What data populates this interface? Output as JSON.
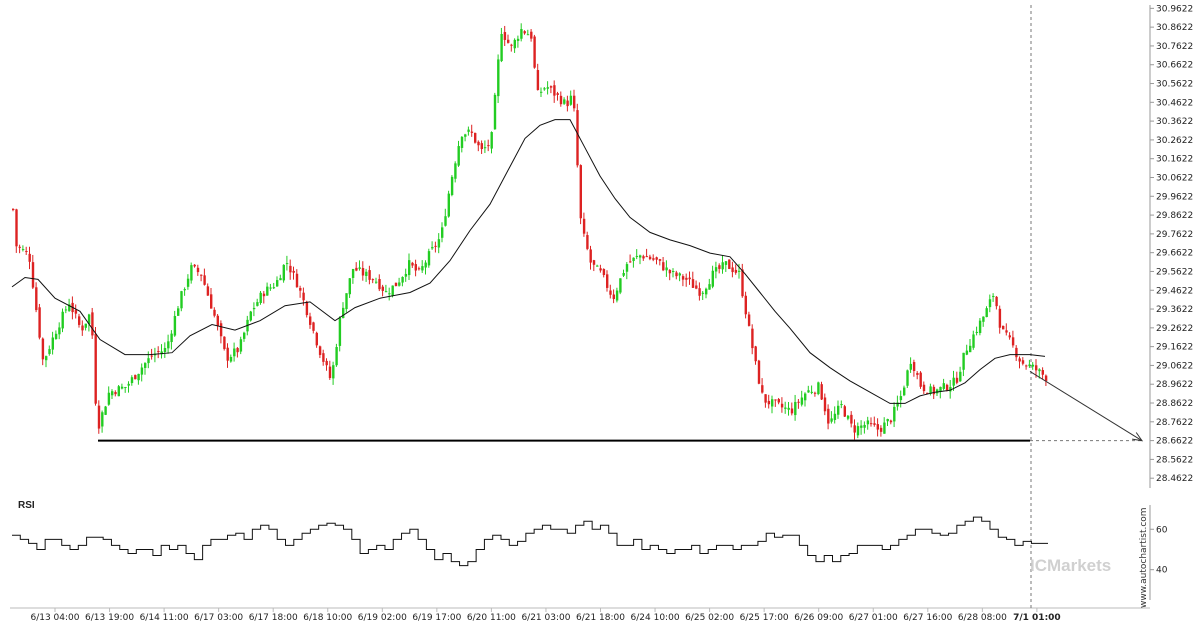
{
  "chart_data": {
    "type": "candlestick",
    "price_axis": {
      "ticks": [
        "30.9622",
        "30.8622",
        "30.7622",
        "30.6622",
        "30.5622",
        "30.4622",
        "30.3622",
        "30.2622",
        "30.1622",
        "30.0622",
        "29.9622",
        "29.8622",
        "29.7622",
        "29.6622",
        "29.5622",
        "29.4622",
        "29.3622",
        "29.2622",
        "29.1622",
        "29.0622",
        "28.9622",
        "28.8622",
        "28.7622",
        "28.6622",
        "28.5622",
        "28.4622"
      ],
      "range": [
        28.41,
        30.98
      ]
    },
    "time_axis": {
      "labels": [
        "6/13 04:00",
        "6/13 19:00",
        "6/14 11:00",
        "6/17 03:00",
        "6/17 18:00",
        "6/18 10:00",
        "6/19 02:00",
        "6/19 17:00",
        "6/20 11:00",
        "6/21 03:00",
        "6/21 18:00",
        "6/24 10:00",
        "6/25 02:00",
        "6/25 17:00",
        "6/26 09:00",
        "6/27 01:00",
        "6/27 16:00",
        "6/28 08:00",
        "7/1 01:00"
      ],
      "highlight": "7/1 01:00"
    },
    "price_path": [
      [
        0,
        29.85
      ],
      [
        8,
        30.15
      ],
      [
        15,
        29.7
      ],
      [
        28,
        29.65
      ],
      [
        42,
        29.08
      ],
      [
        55,
        29.25
      ],
      [
        68,
        29.4
      ],
      [
        80,
        29.25
      ],
      [
        90,
        29.35
      ],
      [
        96,
        28.72
      ],
      [
        108,
        28.92
      ],
      [
        125,
        28.95
      ],
      [
        140,
        29.05
      ],
      [
        152,
        29.12
      ],
      [
        165,
        29.15
      ],
      [
        178,
        29.4
      ],
      [
        190,
        29.58
      ],
      [
        200,
        29.55
      ],
      [
        212,
        29.35
      ],
      [
        225,
        29.1
      ],
      [
        238,
        29.15
      ],
      [
        250,
        29.35
      ],
      [
        262,
        29.45
      ],
      [
        275,
        29.5
      ],
      [
        285,
        29.62
      ],
      [
        296,
        29.5
      ],
      [
        306,
        29.35
      ],
      [
        318,
        29.15
      ],
      [
        330,
        28.98
      ],
      [
        340,
        29.35
      ],
      [
        352,
        29.58
      ],
      [
        362,
        29.55
      ],
      [
        374,
        29.52
      ],
      [
        385,
        29.45
      ],
      [
        396,
        29.5
      ],
      [
        408,
        29.6
      ],
      [
        418,
        29.55
      ],
      [
        428,
        29.65
      ],
      [
        440,
        29.75
      ],
      [
        450,
        30.05
      ],
      [
        460,
        30.3
      ],
      [
        470,
        30.3
      ],
      [
        480,
        30.2
      ],
      [
        490,
        30.25
      ],
      [
        500,
        30.85
      ],
      [
        510,
        30.75
      ],
      [
        520,
        30.85
      ],
      [
        530,
        30.82
      ],
      [
        536,
        30.5
      ],
      [
        545,
        30.55
      ],
      [
        555,
        30.5
      ],
      [
        565,
        30.45
      ],
      [
        572,
        30.5
      ],
      [
        576,
        30.15
      ],
      [
        580,
        29.8
      ],
      [
        590,
        29.6
      ],
      [
        600,
        29.55
      ],
      [
        612,
        29.42
      ],
      [
        625,
        29.6
      ],
      [
        640,
        29.65
      ],
      [
        655,
        29.62
      ],
      [
        670,
        29.55
      ],
      [
        685,
        29.52
      ],
      [
        700,
        29.45
      ],
      [
        712,
        29.55
      ],
      [
        725,
        29.6
      ],
      [
        738,
        29.55
      ],
      [
        748,
        29.25
      ],
      [
        755,
        29.05
      ],
      [
        762,
        28.88
      ],
      [
        775,
        28.85
      ],
      [
        790,
        28.82
      ],
      [
        805,
        28.92
      ],
      [
        818,
        28.95
      ],
      [
        828,
        28.75
      ],
      [
        840,
        28.85
      ],
      [
        852,
        28.72
      ],
      [
        865,
        28.75
      ],
      [
        878,
        28.72
      ],
      [
        890,
        28.78
      ],
      [
        900,
        28.9
      ],
      [
        910,
        29.1
      ],
      [
        920,
        28.95
      ],
      [
        932,
        28.92
      ],
      [
        945,
        28.95
      ],
      [
        955,
        28.98
      ],
      [
        965,
        29.15
      ],
      [
        975,
        29.25
      ],
      [
        985,
        29.35
      ],
      [
        993,
        29.45
      ],
      [
        1000,
        29.25
      ],
      [
        1010,
        29.18
      ],
      [
        1020,
        29.08
      ],
      [
        1032,
        29.05
      ],
      [
        1045,
        29.0
      ]
    ],
    "moving_average": [
      [
        12,
        29.48
      ],
      [
        25,
        29.53
      ],
      [
        38,
        29.52
      ],
      [
        55,
        29.42
      ],
      [
        80,
        29.35
      ],
      [
        100,
        29.2
      ],
      [
        125,
        29.12
      ],
      [
        150,
        29.12
      ],
      [
        172,
        29.13
      ],
      [
        190,
        29.22
      ],
      [
        212,
        29.28
      ],
      [
        235,
        29.25
      ],
      [
        260,
        29.3
      ],
      [
        285,
        29.38
      ],
      [
        310,
        29.4
      ],
      [
        335,
        29.3
      ],
      [
        355,
        29.37
      ],
      [
        380,
        29.42
      ],
      [
        410,
        29.45
      ],
      [
        430,
        29.5
      ],
      [
        450,
        29.62
      ],
      [
        470,
        29.78
      ],
      [
        490,
        29.92
      ],
      [
        510,
        30.12
      ],
      [
        525,
        30.27
      ],
      [
        540,
        30.34
      ],
      [
        555,
        30.37
      ],
      [
        570,
        30.37
      ],
      [
        585,
        30.22
      ],
      [
        600,
        30.07
      ],
      [
        615,
        29.95
      ],
      [
        630,
        29.85
      ],
      [
        650,
        29.77
      ],
      [
        670,
        29.73
      ],
      [
        690,
        29.7
      ],
      [
        710,
        29.66
      ],
      [
        730,
        29.64
      ],
      [
        745,
        29.55
      ],
      [
        760,
        29.45
      ],
      [
        775,
        29.35
      ],
      [
        790,
        29.26
      ],
      [
        810,
        29.13
      ],
      [
        830,
        29.05
      ],
      [
        850,
        28.98
      ],
      [
        870,
        28.92
      ],
      [
        890,
        28.86
      ],
      [
        905,
        28.86
      ],
      [
        920,
        28.9
      ],
      [
        935,
        28.92
      ],
      [
        950,
        28.93
      ],
      [
        965,
        28.97
      ],
      [
        980,
        29.04
      ],
      [
        995,
        29.1
      ],
      [
        1010,
        29.12
      ],
      [
        1030,
        29.12
      ],
      [
        1045,
        29.11
      ]
    ],
    "support_level": 28.662,
    "support_range": [
      98,
      1030
    ],
    "projection": {
      "from": [
        1030,
        29.03
      ],
      "to": [
        1142,
        28.662
      ]
    },
    "current_marker_x": 1031,
    "rsi": {
      "label": "RSI",
      "ticks": [
        "60",
        "40"
      ],
      "levels": [
        60,
        40
      ],
      "range": [
        25,
        72
      ],
      "values": [
        57,
        55,
        53,
        50,
        55,
        55,
        52,
        50,
        52,
        56,
        56,
        55,
        52,
        50,
        48,
        50,
        50,
        47,
        52,
        50,
        52,
        48,
        45,
        52,
        55,
        55,
        57,
        58,
        55,
        60,
        62,
        60,
        55,
        52,
        55,
        58,
        60,
        62,
        63,
        62,
        60,
        55,
        48,
        50,
        52,
        50,
        55,
        58,
        60,
        55,
        50,
        45,
        48,
        44,
        42,
        44,
        50,
        55,
        57,
        55,
        52,
        54,
        58,
        60,
        62,
        60,
        60,
        58,
        62,
        64,
        60,
        62,
        58,
        52,
        52,
        55,
        50,
        52,
        50,
        48,
        50,
        50,
        52,
        48,
        50,
        52,
        52,
        50,
        52,
        52,
        54,
        58,
        56,
        57,
        57,
        52,
        47,
        44,
        47,
        44,
        47,
        48,
        52,
        52,
        52,
        50,
        52,
        55,
        57,
        60,
        60,
        58,
        57,
        58,
        62,
        64,
        66,
        64,
        60,
        56,
        55,
        52,
        54,
        53,
        53,
        53
      ]
    },
    "watermark": "ICMarkets",
    "vertical_text": "www.autochartist.com",
    "colors": {
      "up": "#22cc22",
      "down": "#dd2222",
      "line": "#111111",
      "grid": "#dddddd"
    }
  }
}
